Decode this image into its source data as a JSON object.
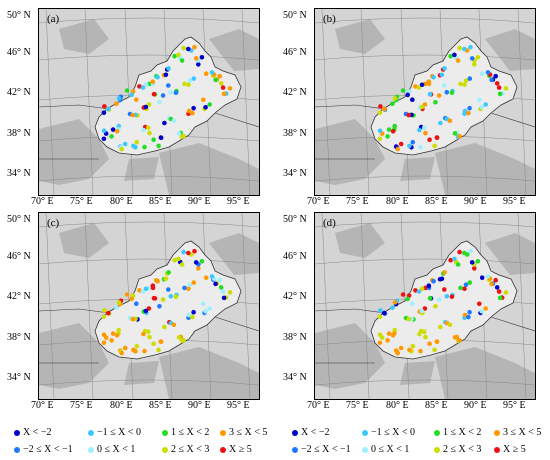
{
  "panels": [
    {
      "label": "(a)"
    },
    {
      "label": "(b)"
    },
    {
      "label": "(c)"
    },
    {
      "label": "(d)"
    }
  ],
  "lat_labels": [
    "50° N",
    "46° N",
    "42° N",
    "38° N",
    "34° N"
  ],
  "lon_labels": [
    "70° E",
    "75° E",
    "80° E",
    "85° E",
    "90° E",
    "95° E"
  ],
  "legend": [
    {
      "label": "X < −2",
      "color": "#0000c8"
    },
    {
      "label": "−2 ≤ X < −1",
      "color": "#1f78ff"
    },
    {
      "label": "−1 ≤ X < 0",
      "color": "#3cc8ff"
    },
    {
      "label": "0 ≤ X < 1",
      "color": "#9ef0ff"
    },
    {
      "label": "1 ≤ X < 2",
      "color": "#22dd22"
    },
    {
      "label": "2 ≤ X < 3",
      "color": "#ccdd00"
    },
    {
      "label": "3 ≤ X < 5",
      "color": "#ff9900"
    },
    {
      "label": "X ≥ 5",
      "color": "#ee1111"
    }
  ]
}
